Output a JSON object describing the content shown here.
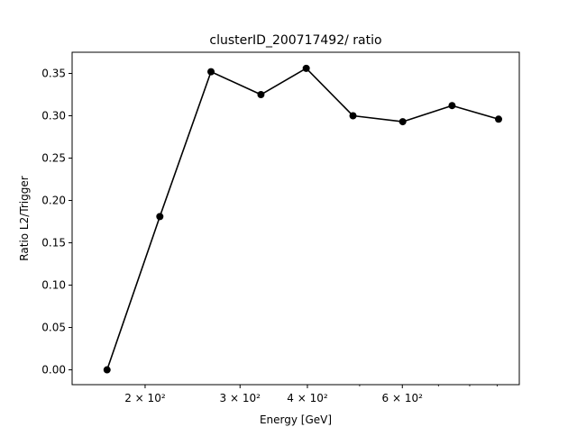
{
  "chart_data": {
    "type": "line",
    "title": "clusterID_200717492/ ratio",
    "xlabel": "Energy [GeV]",
    "ylabel": "Ratio L2/Trigger",
    "xscale": "log",
    "xlim": [
      160,
      905
    ],
    "ylim": [
      -0.0175,
      0.375
    ],
    "grid": false,
    "series": [
      {
        "color": "#000000",
        "marker": "circle",
        "x": [
          170,
          213,
          265,
          328,
          398,
          486,
          601,
          742,
          905
        ],
        "y": [
          0.0,
          0.181,
          0.352,
          0.325,
          0.356,
          0.3,
          0.293,
          0.312,
          0.296
        ]
      }
    ],
    "xticks": [
      {
        "value": 200,
        "label": "2 × 10²"
      },
      {
        "value": 300,
        "label": "3 × 10²"
      },
      {
        "value": 400,
        "label": "4 × 10²"
      },
      {
        "value": 600,
        "label": "6 × 10²"
      }
    ],
    "xminor": [
      500,
      700,
      800,
      900
    ],
    "yticks": [
      {
        "value": 0.0,
        "label": "0.00"
      },
      {
        "value": 0.05,
        "label": "0.05"
      },
      {
        "value": 0.1,
        "label": "0.10"
      },
      {
        "value": 0.15,
        "label": "0.15"
      },
      {
        "value": 0.2,
        "label": "0.20"
      },
      {
        "value": 0.25,
        "label": "0.25"
      },
      {
        "value": 0.3,
        "label": "0.30"
      },
      {
        "value": 0.35,
        "label": "0.35"
      }
    ]
  }
}
